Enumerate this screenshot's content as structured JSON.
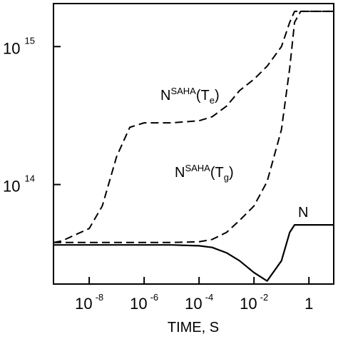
{
  "chart_data": {
    "type": "line",
    "x_label": "TIME, S",
    "xscale": "log",
    "yscale": "log",
    "xlim": [
      5e-10,
      8
    ],
    "ylim": [
      19000000000000.0,
      2050000000000000.0
    ],
    "xticks": [
      {
        "value": 1e-08,
        "label": "10",
        "exponent": "-8"
      },
      {
        "value": 1e-06,
        "label": "10",
        "exponent": "-6"
      },
      {
        "value": 0.0001,
        "label": "10",
        "exponent": "-4"
      },
      {
        "value": 0.01,
        "label": "10",
        "exponent": "-2"
      },
      1
    ],
    "yticks": [
      {
        "value": 100000000000000.0,
        "label": "10",
        "exponent": "14"
      },
      {
        "value": 1000000000000000.0,
        "label": "10",
        "exponent": "15"
      }
    ],
    "x": [
      5e-10,
      1e-09,
      1e-08,
      3e-08,
      1e-07,
      3e-07,
      1e-06,
      1e-05,
      0.0001,
      0.0003,
      0.001,
      0.003,
      0.01,
      0.03,
      0.1,
      0.2,
      0.3,
      0.5,
      1,
      8
    ],
    "series": [
      {
        "label": {
          "main": "N",
          "sup": "SAHA",
          "open": "(T",
          "sub": "e",
          "close": ")"
        },
        "color": "#000000",
        "dash": true,
        "values": [
          38000000000000.0,
          39000000000000.0,
          48000000000000.0,
          70000000000000.0,
          160000000000000.0,
          260000000000000.0,
          280000000000000.0,
          280000000000000.0,
          290000000000000.0,
          310000000000000.0,
          370000000000000.0,
          480000000000000.0,
          580000000000000.0,
          720000000000000.0,
          1000000000000000.0,
          1500000000000000.0,
          1800000000000000.0,
          1800000000000000.0,
          1800000000000000.0,
          1800000000000000.0
        ]
      },
      {
        "label": {
          "main": "N",
          "sup": "SAHA",
          "open": "(T",
          "sub": "g",
          "close": ")"
        },
        "color": "#000000",
        "dash": true,
        "values": [
          38000000000000.0,
          38000000000000.0,
          38000000000000.0,
          38000000000000.0,
          38000000000000.0,
          38000000000000.0,
          38000000000000.0,
          38000000000000.0,
          38500000000000.0,
          40000000000000.0,
          45000000000000.0,
          55000000000000.0,
          70000000000000.0,
          105000000000000.0,
          250000000000000.0,
          700000000000000.0,
          1500000000000000.0,
          1800000000000000.0,
          1800000000000000.0,
          1800000000000000.0
        ]
      },
      {
        "label": {
          "main": "N"
        },
        "color": "#000000",
        "dash": false,
        "values": [
          36500000000000.0,
          36500000000000.0,
          36500000000000.0,
          36500000000000.0,
          36500000000000.0,
          36500000000000.0,
          36500000000000.0,
          36500000000000.0,
          36000000000000.0,
          35000000000000.0,
          32000000000000.0,
          28000000000000.0,
          23000000000000.0,
          20000000000000.0,
          28000000000000.0,
          45000000000000.0,
          51000000000000.0,
          51000000000000.0,
          51000000000000.0,
          51000000000000.0
        ]
      }
    ]
  }
}
